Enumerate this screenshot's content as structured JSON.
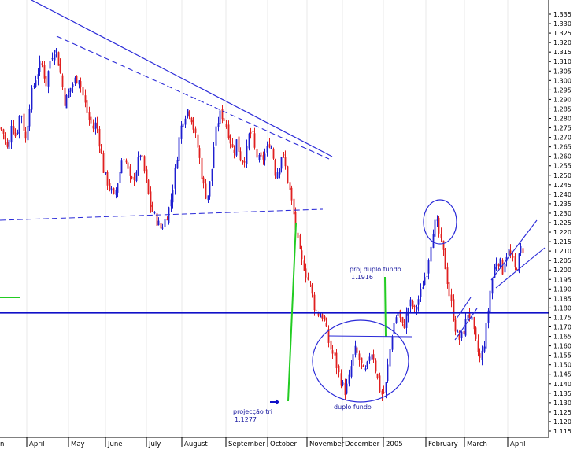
{
  "chart_data": {
    "type": "candlestick",
    "ylim": [
      1.11,
      1.34
    ],
    "y_ticks": [
      "1.115",
      "1.120",
      "1.125",
      "1.130",
      "1.135",
      "1.140",
      "1.145",
      "1.150",
      "1.155",
      "1.160",
      "1.165",
      "1.170",
      "1.175",
      "1.180",
      "1.185",
      "1.190",
      "1.195",
      "1.200",
      "1.205",
      "1.210",
      "1.215",
      "1.220",
      "1.225",
      "1.230",
      "1.235",
      "1.240",
      "1.245",
      "1.250",
      "1.255",
      "1.260",
      "1.265",
      "1.270",
      "1.275",
      "1.280",
      "1.285",
      "1.290",
      "1.295",
      "1.300",
      "1.305",
      "1.310",
      "1.315",
      "1.320",
      "1.325",
      "1.330",
      "1.335"
    ],
    "x_ticks": [
      "n",
      "April",
      "May",
      "June",
      "July",
      "August",
      "September",
      "October",
      "November",
      "December",
      "2005",
      "February",
      "March",
      "April"
    ],
    "colors": {
      "up": "#1f1fd0",
      "down": "#e02020",
      "trend": "#2a2ad8",
      "support": "#1010c8",
      "projection": "#22cc22"
    },
    "close_path": [
      [
        0,
        1.275
      ],
      [
        4,
        1.272
      ],
      [
        10,
        1.262
      ],
      [
        14,
        1.278
      ],
      [
        20,
        1.27
      ],
      [
        26,
        1.285
      ],
      [
        32,
        1.268
      ],
      [
        38,
        1.29
      ],
      [
        44,
        1.3
      ],
      [
        52,
        1.31
      ],
      [
        58,
        1.298
      ],
      [
        64,
        1.312
      ],
      [
        70,
        1.318
      ],
      [
        76,
        1.305
      ],
      [
        82,
        1.288
      ],
      [
        88,
        1.295
      ],
      [
        94,
        1.3
      ],
      [
        100,
        1.302
      ],
      [
        106,
        1.29
      ],
      [
        112,
        1.28
      ],
      [
        118,
        1.275
      ],
      [
        122,
        1.278
      ],
      [
        128,
        1.262
      ],
      [
        132,
        1.25
      ],
      [
        138,
        1.245
      ],
      [
        144,
        1.238
      ],
      [
        150,
        1.248
      ],
      [
        156,
        1.262
      ],
      [
        160,
        1.256
      ],
      [
        166,
        1.245
      ],
      [
        172,
        1.252
      ],
      [
        178,
        1.262
      ],
      [
        184,
        1.25
      ],
      [
        190,
        1.235
      ],
      [
        196,
        1.228
      ],
      [
        200,
        1.225
      ],
      [
        204,
        1.222
      ],
      [
        208,
        1.225
      ],
      [
        214,
        1.232
      ],
      [
        218,
        1.24
      ],
      [
        222,
        1.252
      ],
      [
        228,
        1.272
      ],
      [
        232,
        1.28
      ],
      [
        238,
        1.285
      ],
      [
        242,
        1.282
      ],
      [
        248,
        1.27
      ],
      [
        252,
        1.262
      ],
      [
        256,
        1.25
      ],
      [
        260,
        1.24
      ],
      [
        264,
        1.24
      ],
      [
        268,
        1.25
      ],
      [
        272,
        1.268
      ],
      [
        276,
        1.278
      ],
      [
        280,
        1.283
      ],
      [
        284,
        1.28
      ],
      [
        290,
        1.272
      ],
      [
        296,
        1.262
      ],
      [
        300,
        1.268
      ],
      [
        306,
        1.258
      ],
      [
        312,
        1.26
      ],
      [
        316,
        1.272
      ],
      [
        320,
        1.272
      ],
      [
        324,
        1.262
      ],
      [
        328,
        1.258
      ],
      [
        332,
        1.258
      ],
      [
        338,
        1.262
      ],
      [
        342,
        1.268
      ],
      [
        346,
        1.262
      ],
      [
        350,
        1.25
      ],
      [
        354,
        1.255
      ],
      [
        358,
        1.262
      ],
      [
        362,
        1.255
      ],
      [
        366,
        1.245
      ],
      [
        370,
        1.236
      ],
      [
        374,
        1.226
      ],
      [
        378,
        1.214
      ],
      [
        382,
        1.205
      ],
      [
        386,
        1.202
      ],
      [
        390,
        1.196
      ],
      [
        394,
        1.192
      ],
      [
        398,
        1.182
      ],
      [
        402,
        1.178
      ],
      [
        406,
        1.176
      ],
      [
        410,
        1.176
      ],
      [
        414,
        1.168
      ],
      [
        418,
        1.16
      ],
      [
        422,
        1.156
      ],
      [
        426,
        1.152
      ],
      [
        430,
        1.145
      ],
      [
        434,
        1.14
      ],
      [
        438,
        1.136
      ],
      [
        442,
        1.14
      ],
      [
        446,
        1.15
      ],
      [
        450,
        1.158
      ],
      [
        454,
        1.155
      ],
      [
        458,
        1.15
      ],
      [
        462,
        1.145
      ],
      [
        466,
        1.148
      ],
      [
        470,
        1.158
      ],
      [
        474,
        1.155
      ],
      [
        478,
        1.145
      ],
      [
        482,
        1.137
      ],
      [
        486,
        1.133
      ],
      [
        490,
        1.14
      ],
      [
        494,
        1.155
      ],
      [
        498,
        1.168
      ],
      [
        502,
        1.175
      ],
      [
        506,
        1.178
      ],
      [
        510,
        1.17
      ],
      [
        514,
        1.172
      ],
      [
        518,
        1.18
      ],
      [
        522,
        1.183
      ],
      [
        526,
        1.178
      ],
      [
        530,
        1.183
      ],
      [
        534,
        1.188
      ],
      [
        538,
        1.195
      ],
      [
        542,
        1.2
      ],
      [
        546,
        1.212
      ],
      [
        550,
        1.223
      ],
      [
        554,
        1.225
      ],
      [
        558,
        1.218
      ],
      [
        562,
        1.21
      ],
      [
        566,
        1.2
      ],
      [
        570,
        1.188
      ],
      [
        574,
        1.18
      ],
      [
        578,
        1.17
      ],
      [
        582,
        1.163
      ],
      [
        586,
        1.165
      ],
      [
        590,
        1.17
      ],
      [
        594,
        1.178
      ],
      [
        598,
        1.175
      ],
      [
        602,
        1.165
      ],
      [
        606,
        1.158
      ],
      [
        610,
        1.152
      ],
      [
        614,
        1.16
      ],
      [
        618,
        1.172
      ],
      [
        622,
        1.188
      ],
      [
        626,
        1.198
      ],
      [
        630,
        1.205
      ],
      [
        634,
        1.205
      ],
      [
        638,
        1.2
      ],
      [
        642,
        1.208
      ],
      [
        646,
        1.21
      ],
      [
        650,
        1.205
      ],
      [
        654,
        1.2
      ],
      [
        658,
        1.205
      ],
      [
        662,
        1.212
      ],
      [
        666,
        1.21
      ],
      [
        668,
        1.21
      ]
    ],
    "annotations": {
      "proj_duplo_fundo_label": "proj duplo fundo",
      "proj_duplo_fundo_value": "1.1916",
      "projeccao_tri_label": "projecção tri",
      "projeccao_tri_value": "1.1277",
      "duplo_fundo_label": "duplo fundo"
    }
  }
}
